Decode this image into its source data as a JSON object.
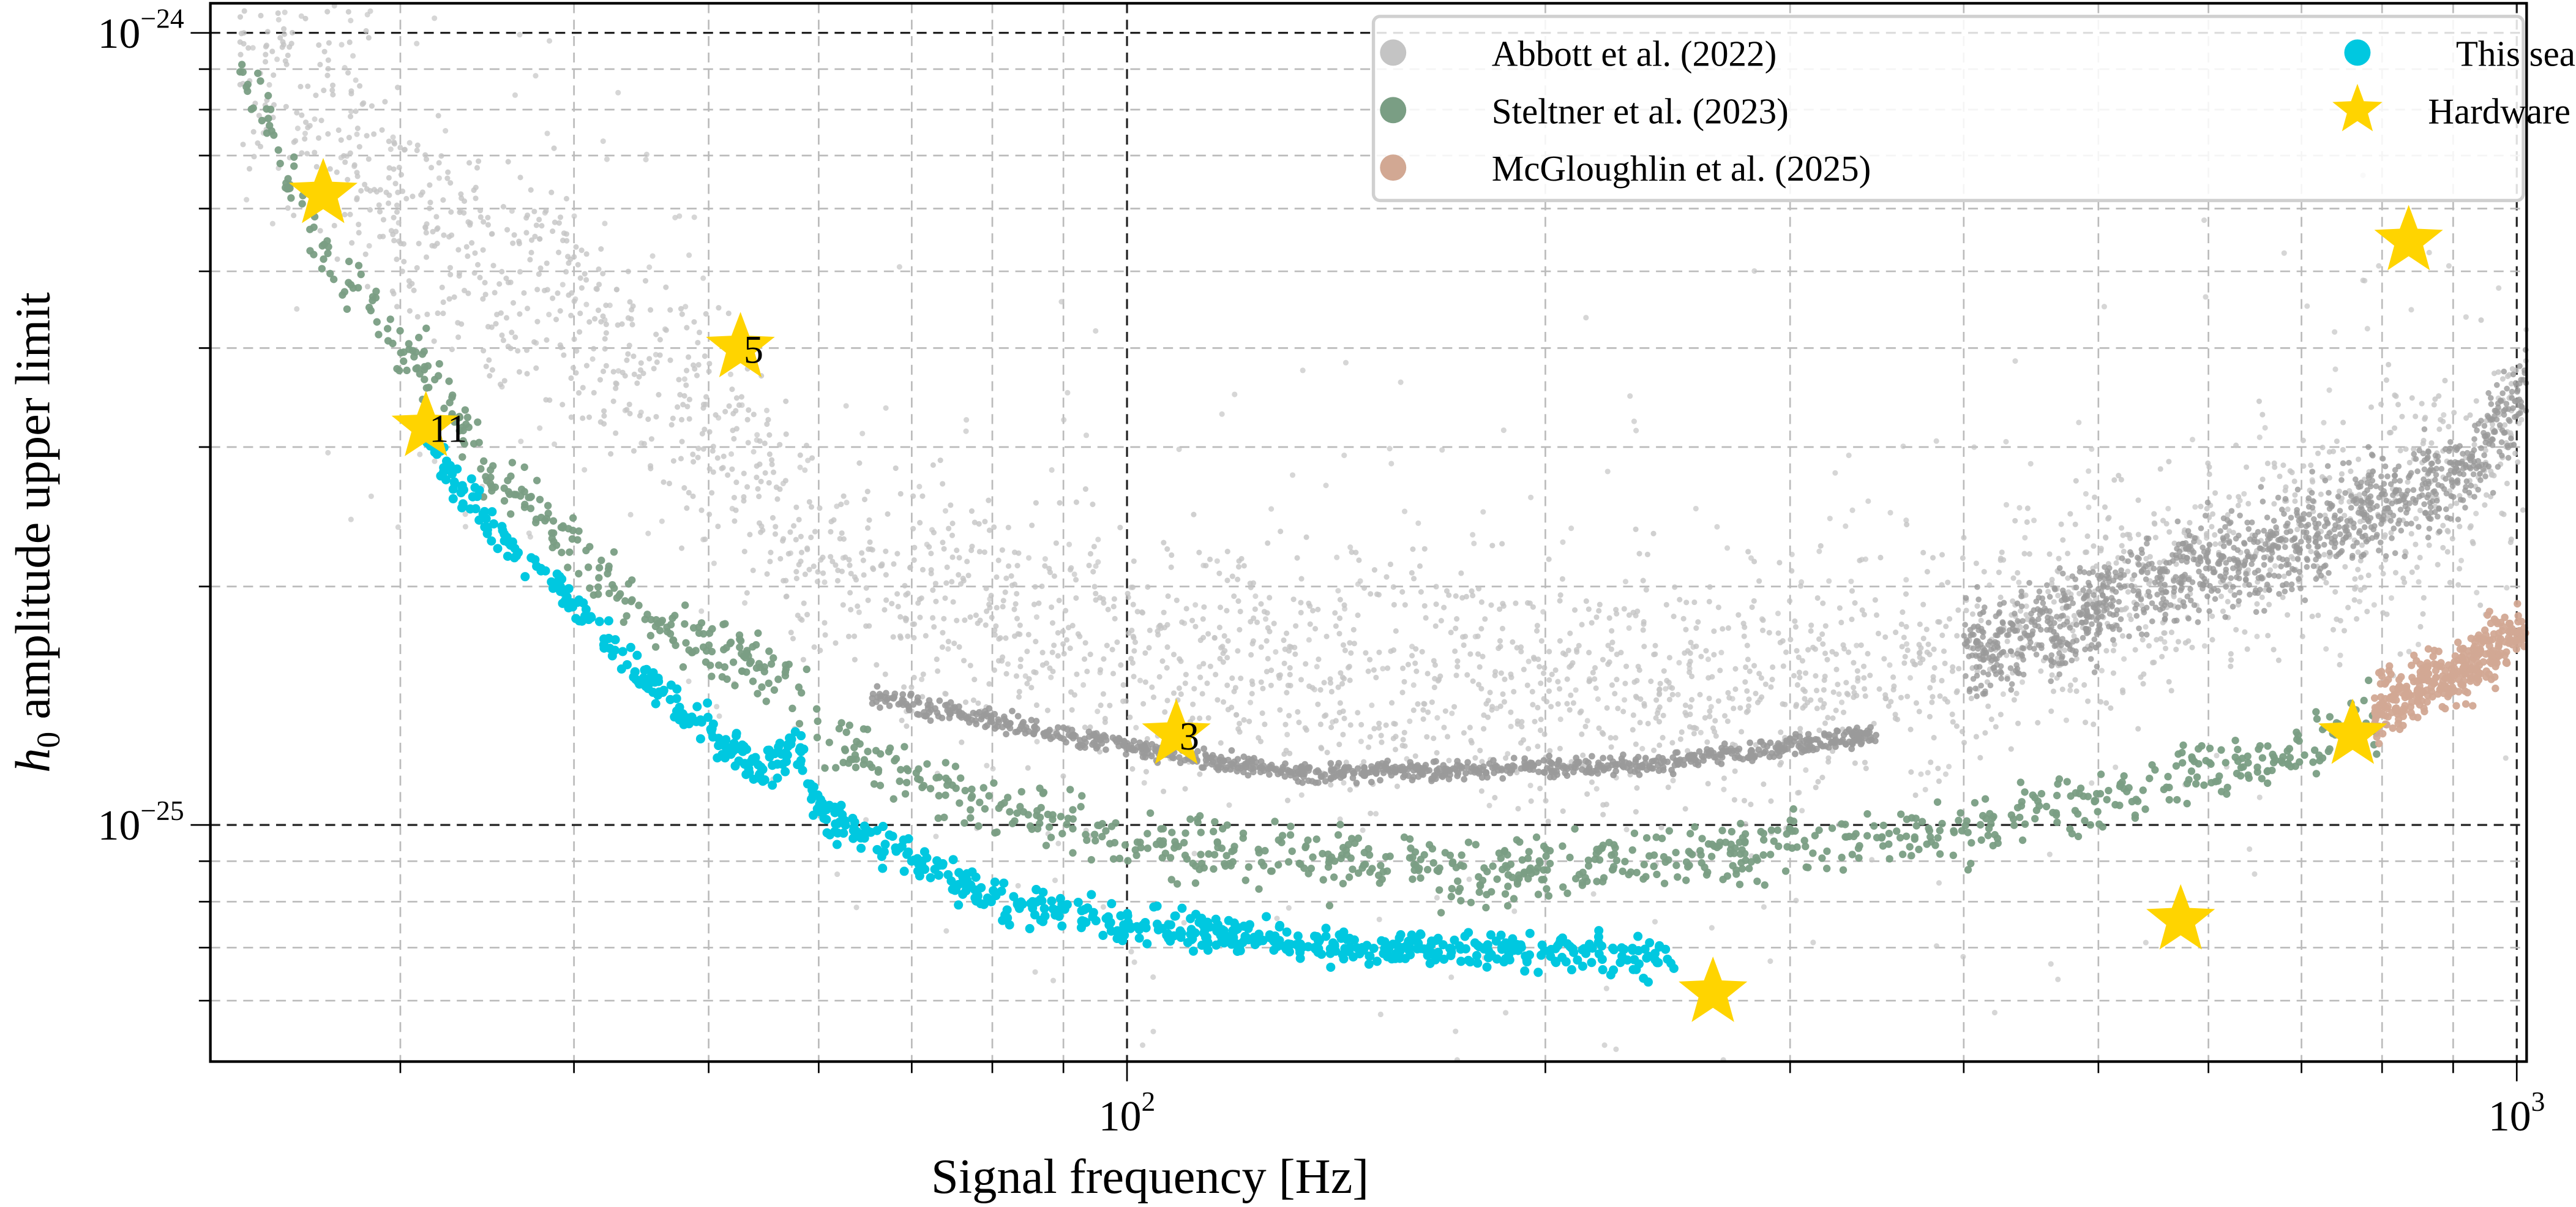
{
  "chart_data": {
    "type": "scatter",
    "title": "",
    "xlabel": "Signal frequency [Hz]",
    "ylabel_main": "h",
    "ylabel_sub": "0",
    "ylabel_rest": " amplitude upper limit",
    "xscale": "log",
    "yscale": "log",
    "xlim": [
      21.9,
      1016
    ],
    "ylim": [
      5e-26,
      1.09e-24
    ],
    "grid": true,
    "legend_placement": "top-right",
    "x_ticks": [
      {
        "value": 100,
        "base": "10",
        "exp": "2"
      },
      {
        "value": 1000,
        "base": "10",
        "exp": "3"
      }
    ],
    "y_ticks": [
      {
        "value": 1e-24,
        "base": "10",
        "exp": "−24"
      },
      {
        "value": 1e-25,
        "base": "10",
        "exp": "−25"
      }
    ],
    "series": [
      {
        "name": "Abbott et al. (2022)",
        "color": "#c4c4c4",
        "band_color": "#9a9a9a",
        "spread": 0.12,
        "points": [
          [
            23,
            1e-24
          ],
          [
            30,
            6e-25
          ],
          [
            40,
            4.5e-25
          ],
          [
            50,
            3.2e-25
          ],
          [
            60,
            2.1e-25
          ],
          [
            80,
            1.8e-25
          ],
          [
            120,
            1.6e-25
          ],
          [
            200,
            1.5e-25
          ],
          [
            300,
            1.5e-25
          ],
          [
            400,
            1.65e-25
          ],
          [
            495,
            1.85e-25
          ],
          [
            530,
            2e-25
          ],
          [
            700,
            2.3e-25
          ],
          [
            917,
            2.8e-25
          ],
          [
            1016,
            3.5e-25
          ]
        ],
        "band_points": [
          [
            65.5,
            1.45e-25
          ],
          [
            79,
            1.36e-25
          ],
          [
            104,
            1.24e-25
          ],
          [
            136,
            1.16e-25
          ],
          [
            235,
            1.19e-25
          ],
          [
            346,
            1.3e-25
          ]
        ]
      },
      {
        "name": "Steltner et al. (2023)",
        "color": "#7a9e84",
        "spread": 0.02,
        "points": [
          [
            23,
            9.1e-25
          ],
          [
            26.7,
            5.1e-25
          ],
          [
            30.6,
            4e-25
          ],
          [
            35,
            2.76e-25
          ],
          [
            46,
            1.79e-25
          ],
          [
            58.8,
            1.48e-25
          ],
          [
            60.4,
            1.28e-25
          ],
          [
            79,
            1.06e-25
          ],
          [
            104,
            9.4e-26
          ],
          [
            179,
            8.7e-26
          ],
          [
            309,
            9.4e-26
          ],
          [
            405,
            9.9e-26
          ],
          [
            504,
            1.09e-25
          ],
          [
            532,
            1.12e-25
          ],
          [
            700,
            1.25e-25
          ],
          [
            801,
            1.37e-25
          ]
        ]
      },
      {
        "name": "McGloughlin et al. (2025)",
        "color": "#d2a893",
        "spread": 0.02,
        "points": [
          [
            790,
            1.4e-25
          ],
          [
            900,
            1.55e-25
          ],
          [
            1016,
            1.79e-25
          ]
        ]
      },
      {
        "name": "This search",
        "color": "#00c8e0",
        "spread": 0.012,
        "points": [
          [
            31,
            3.1e-25
          ],
          [
            35,
            2.39e-25
          ],
          [
            46,
            1.48e-25
          ],
          [
            55,
            1.16e-25
          ],
          [
            58,
            1.25e-25
          ],
          [
            60.4,
            1.03e-25
          ],
          [
            79,
            8.1e-26
          ],
          [
            104,
            7.4e-26
          ],
          [
            136,
            7.05e-26
          ],
          [
            249,
            6.8e-26
          ]
        ]
      }
    ],
    "hardware_injections": {
      "name": "Hardware injections",
      "color": "#ffd400",
      "points": [
        {
          "f": 26.4,
          "h": 6.26e-25,
          "label": ""
        },
        {
          "f": 31.3,
          "h": 3.18e-25,
          "label": "11"
        },
        {
          "f": 52.7,
          "h": 4e-25,
          "label": "5"
        },
        {
          "f": 108.5,
          "h": 1.3e-25,
          "label": "3"
        },
        {
          "f": 264,
          "h": 6.14e-26,
          "label": ""
        },
        {
          "f": 573,
          "h": 7.58e-26,
          "label": ""
        },
        {
          "f": 762,
          "h": 1.3e-25,
          "label": ""
        },
        {
          "f": 836,
          "h": 5.46e-25,
          "label": ""
        }
      ]
    }
  }
}
